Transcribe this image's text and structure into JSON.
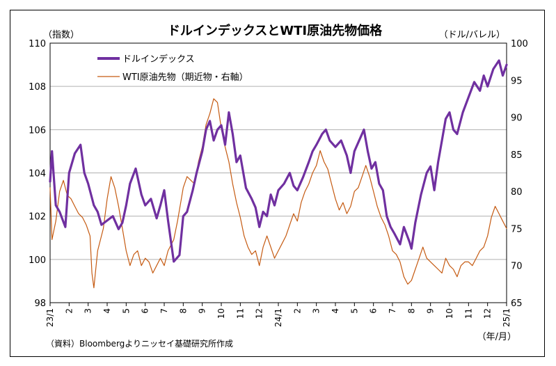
{
  "chart_data": {
    "type": "line",
    "title": "ドルインデックスとWTI原油先物価格",
    "y_left_label": "（指数）",
    "y_right_label": "（ドル/バレル）",
    "x_unit_label": "（年/月）",
    "source_note": "（資料）Bloombergよりニッセイ基礎研究所作成",
    "y_left_range": [
      98,
      110
    ],
    "y_left_ticks": [
      "98",
      "100",
      "102",
      "104",
      "106",
      "108",
      "110"
    ],
    "y_right_range": [
      65,
      100
    ],
    "y_right_ticks": [
      "65",
      "70",
      "75",
      "80",
      "85",
      "90",
      "95",
      "100"
    ],
    "x_tick_labels": [
      "23/1",
      "2",
      "3",
      "4",
      "5",
      "6",
      "7",
      "8",
      "9",
      "10",
      "11",
      "12",
      "24/1",
      "2",
      "3",
      "4",
      "5",
      "6",
      "7",
      "8",
      "9",
      "10",
      "11",
      "12",
      "25/1"
    ],
    "gridlines": true,
    "legend_position": "top-left",
    "series": [
      {
        "name": "ドルインデックス",
        "axis": "left",
        "color": "#7030a0",
        "points": [
          [
            0,
            103.6
          ],
          [
            0.1,
            105.0
          ],
          [
            0.3,
            102.5
          ],
          [
            0.5,
            102.2
          ],
          [
            0.8,
            101.5
          ],
          [
            1.0,
            104.0
          ],
          [
            1.3,
            104.9
          ],
          [
            1.6,
            105.3
          ],
          [
            1.8,
            104.0
          ],
          [
            2.0,
            103.5
          ],
          [
            2.3,
            102.5
          ],
          [
            2.5,
            102.2
          ],
          [
            2.7,
            101.6
          ],
          [
            3.0,
            101.8
          ],
          [
            3.3,
            102.0
          ],
          [
            3.6,
            101.4
          ],
          [
            3.8,
            101.7
          ],
          [
            4.0,
            102.5
          ],
          [
            4.2,
            103.5
          ],
          [
            4.5,
            104.2
          ],
          [
            4.8,
            103.0
          ],
          [
            5.0,
            102.5
          ],
          [
            5.3,
            102.8
          ],
          [
            5.6,
            101.9
          ],
          [
            5.8,
            102.5
          ],
          [
            6.0,
            103.2
          ],
          [
            6.2,
            101.8
          ],
          [
            6.5,
            99.9
          ],
          [
            6.8,
            100.2
          ],
          [
            7.0,
            102.0
          ],
          [
            7.2,
            102.2
          ],
          [
            7.5,
            103.2
          ],
          [
            7.7,
            104.0
          ],
          [
            8.0,
            105.0
          ],
          [
            8.2,
            106.0
          ],
          [
            8.4,
            106.4
          ],
          [
            8.6,
            105.5
          ],
          [
            8.8,
            106.0
          ],
          [
            9.0,
            106.2
          ],
          [
            9.2,
            105.3
          ],
          [
            9.4,
            106.8
          ],
          [
            9.6,
            105.8
          ],
          [
            9.8,
            104.5
          ],
          [
            10.0,
            104.8
          ],
          [
            10.3,
            103.3
          ],
          [
            10.6,
            102.8
          ],
          [
            10.8,
            102.4
          ],
          [
            11.0,
            101.5
          ],
          [
            11.2,
            102.2
          ],
          [
            11.4,
            102.0
          ],
          [
            11.6,
            103.0
          ],
          [
            11.8,
            102.5
          ],
          [
            12.0,
            103.2
          ],
          [
            12.3,
            103.5
          ],
          [
            12.6,
            104.0
          ],
          [
            12.8,
            103.4
          ],
          [
            13.0,
            103.2
          ],
          [
            13.3,
            103.8
          ],
          [
            13.6,
            104.5
          ],
          [
            13.8,
            105.0
          ],
          [
            14.0,
            105.3
          ],
          [
            14.3,
            105.8
          ],
          [
            14.5,
            106.0
          ],
          [
            14.7,
            105.5
          ],
          [
            15.0,
            105.2
          ],
          [
            15.3,
            105.5
          ],
          [
            15.6,
            104.8
          ],
          [
            15.8,
            104.0
          ],
          [
            16.0,
            105.0
          ],
          [
            16.3,
            105.6
          ],
          [
            16.5,
            106.0
          ],
          [
            16.7,
            105.0
          ],
          [
            16.9,
            104.2
          ],
          [
            17.1,
            104.5
          ],
          [
            17.3,
            103.5
          ],
          [
            17.5,
            103.2
          ],
          [
            17.7,
            102.0
          ],
          [
            17.9,
            101.5
          ],
          [
            18.1,
            101.2
          ],
          [
            18.4,
            100.7
          ],
          [
            18.6,
            101.5
          ],
          [
            18.9,
            100.8
          ],
          [
            19.0,
            100.5
          ],
          [
            19.2,
            101.7
          ],
          [
            19.5,
            103.0
          ],
          [
            19.8,
            104.0
          ],
          [
            20.0,
            104.3
          ],
          [
            20.2,
            103.2
          ],
          [
            20.4,
            104.5
          ],
          [
            20.6,
            105.5
          ],
          [
            20.8,
            106.5
          ],
          [
            21.0,
            106.8
          ],
          [
            21.2,
            106.0
          ],
          [
            21.4,
            105.8
          ],
          [
            21.7,
            106.8
          ],
          [
            22.0,
            107.5
          ],
          [
            22.3,
            108.2
          ],
          [
            22.6,
            107.8
          ],
          [
            22.8,
            108.5
          ],
          [
            23.0,
            108.0
          ],
          [
            23.3,
            108.8
          ],
          [
            23.6,
            109.2
          ],
          [
            23.8,
            108.5
          ],
          [
            24.0,
            109.0
          ]
        ]
      },
      {
        "name": "WTI原油先物（期近物・右軸）",
        "axis": "right",
        "color": "#c55a11",
        "points": [
          [
            0,
            80.5
          ],
          [
            0.1,
            73.5
          ],
          [
            0.3,
            76.0
          ],
          [
            0.5,
            80.0
          ],
          [
            0.7,
            81.5
          ],
          [
            0.9,
            79.5
          ],
          [
            1.1,
            79.0
          ],
          [
            1.3,
            78.0
          ],
          [
            1.5,
            77.0
          ],
          [
            1.7,
            76.5
          ],
          [
            1.9,
            75.5
          ],
          [
            2.1,
            74.0
          ],
          [
            2.2,
            69.0
          ],
          [
            2.3,
            67.0
          ],
          [
            2.5,
            72.0
          ],
          [
            2.8,
            75.0
          ],
          [
            3.0,
            79.0
          ],
          [
            3.2,
            82.0
          ],
          [
            3.4,
            80.5
          ],
          [
            3.6,
            78.0
          ],
          [
            3.8,
            75.0
          ],
          [
            4.0,
            72.0
          ],
          [
            4.2,
            70.0
          ],
          [
            4.4,
            71.5
          ],
          [
            4.6,
            72.0
          ],
          [
            4.8,
            70.0
          ],
          [
            5.0,
            71.0
          ],
          [
            5.2,
            70.5
          ],
          [
            5.4,
            69.0
          ],
          [
            5.6,
            70.0
          ],
          [
            5.8,
            71.0
          ],
          [
            6.0,
            70.0
          ],
          [
            6.2,
            72.0
          ],
          [
            6.5,
            73.5
          ],
          [
            6.7,
            76.0
          ],
          [
            6.9,
            79.0
          ],
          [
            7.0,
            80.5
          ],
          [
            7.2,
            82.0
          ],
          [
            7.4,
            81.5
          ],
          [
            7.6,
            81.0
          ],
          [
            7.8,
            84.0
          ],
          [
            8.0,
            86.0
          ],
          [
            8.2,
            89.0
          ],
          [
            8.4,
            90.5
          ],
          [
            8.6,
            92.5
          ],
          [
            8.8,
            92.0
          ],
          [
            9.0,
            88.5
          ],
          [
            9.2,
            86.0
          ],
          [
            9.4,
            84.0
          ],
          [
            9.6,
            81.0
          ],
          [
            9.8,
            78.5
          ],
          [
            10.0,
            76.5
          ],
          [
            10.2,
            74.0
          ],
          [
            10.4,
            72.5
          ],
          [
            10.6,
            71.5
          ],
          [
            10.8,
            72.0
          ],
          [
            11.0,
            70.0
          ],
          [
            11.2,
            72.5
          ],
          [
            11.4,
            74.0
          ],
          [
            11.6,
            72.5
          ],
          [
            11.8,
            71.0
          ],
          [
            12.0,
            72.0
          ],
          [
            12.2,
            73.0
          ],
          [
            12.4,
            74.0
          ],
          [
            12.6,
            75.5
          ],
          [
            12.8,
            77.0
          ],
          [
            13.0,
            76.0
          ],
          [
            13.2,
            78.5
          ],
          [
            13.4,
            80.0
          ],
          [
            13.6,
            81.0
          ],
          [
            13.8,
            82.5
          ],
          [
            14.0,
            83.5
          ],
          [
            14.2,
            85.5
          ],
          [
            14.4,
            84.0
          ],
          [
            14.6,
            83.0
          ],
          [
            14.8,
            81.0
          ],
          [
            15.0,
            79.0
          ],
          [
            15.2,
            77.5
          ],
          [
            15.4,
            78.5
          ],
          [
            15.6,
            77.0
          ],
          [
            15.8,
            78.0
          ],
          [
            16.0,
            80.0
          ],
          [
            16.2,
            80.5
          ],
          [
            16.4,
            82.0
          ],
          [
            16.6,
            83.5
          ],
          [
            16.8,
            82.0
          ],
          [
            17.0,
            80.0
          ],
          [
            17.2,
            78.0
          ],
          [
            17.4,
            76.5
          ],
          [
            17.6,
            75.5
          ],
          [
            17.8,
            74.0
          ],
          [
            18.0,
            72.0
          ],
          [
            18.2,
            71.5
          ],
          [
            18.4,
            70.5
          ],
          [
            18.6,
            68.5
          ],
          [
            18.8,
            67.5
          ],
          [
            19.0,
            68.0
          ],
          [
            19.2,
            69.5
          ],
          [
            19.4,
            71.0
          ],
          [
            19.6,
            72.5
          ],
          [
            19.8,
            71.0
          ],
          [
            20.0,
            70.5
          ],
          [
            20.2,
            70.0
          ],
          [
            20.4,
            69.5
          ],
          [
            20.6,
            69.0
          ],
          [
            20.8,
            71.0
          ],
          [
            21.0,
            70.0
          ],
          [
            21.2,
            69.5
          ],
          [
            21.4,
            68.5
          ],
          [
            21.6,
            70.0
          ],
          [
            21.8,
            70.5
          ],
          [
            22.0,
            70.5
          ],
          [
            22.2,
            70.0
          ],
          [
            22.4,
            71.0
          ],
          [
            22.6,
            72.0
          ],
          [
            22.8,
            72.5
          ],
          [
            23.0,
            74.0
          ],
          [
            23.2,
            76.5
          ],
          [
            23.4,
            78.0
          ],
          [
            23.6,
            77.0
          ],
          [
            23.8,
            76.0
          ],
          [
            24.0,
            75.0
          ]
        ]
      }
    ]
  }
}
